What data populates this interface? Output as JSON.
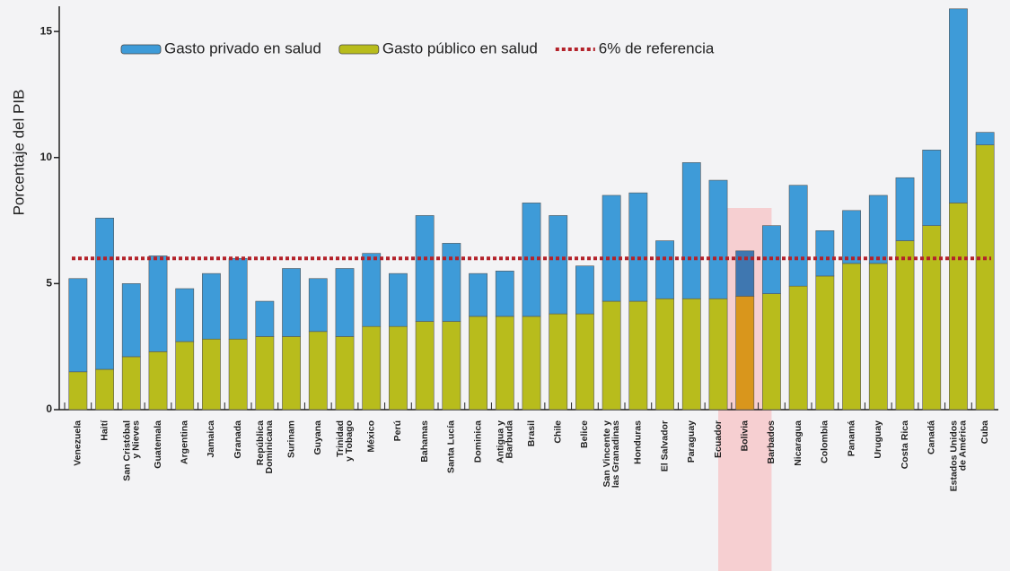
{
  "chart_data": {
    "type": "stacked_bar",
    "y_label": "Porcentaje del PIB",
    "categories": [
      "Venezuela",
      "Haití",
      "San Cristóbal y Nieves",
      "Guatemala",
      "Argentina",
      "Jamaica",
      "Granada",
      "República Dominicana",
      "Surinam",
      "Guyana",
      "Trinidad y Tobago",
      "México",
      "Perú",
      "Bahamas",
      "Santa Lucía",
      "Dominica",
      "Antigua y Barbuda",
      "Brasil",
      "Chile",
      "Belice",
      "San Vincente y las Granadinas",
      "Honduras",
      "El Salvador",
      "Paraguay",
      "Ecuador",
      "Bolivia",
      "Barbados",
      "Nicaragua",
      "Colombia",
      "Panamá",
      "Uruguay",
      "Costa Rica",
      "Canadá",
      "Estados Unidos de América",
      "Cuba"
    ],
    "series": [
      {
        "name": "Gasto privado en salud",
        "color": "#3e9bd8",
        "stack_order": 1,
        "values": [
          3.7,
          6.0,
          2.9,
          3.8,
          2.1,
          2.6,
          3.2,
          1.4,
          2.7,
          2.1,
          2.7,
          2.9,
          2.1,
          4.2,
          3.1,
          1.7,
          1.8,
          4.5,
          3.9,
          1.9,
          4.2,
          4.3,
          2.3,
          5.4,
          4.7,
          1.8,
          2.7,
          4.0,
          1.8,
          2.1,
          2.7,
          2.5,
          3.0,
          7.7,
          0.5
        ]
      },
      {
        "name": "Gasto público en salud",
        "color": "#b8bc1c",
        "stack_order": 0,
        "values": [
          1.5,
          1.6,
          2.1,
          2.3,
          2.7,
          2.8,
          2.8,
          2.9,
          2.9,
          3.1,
          2.9,
          3.3,
          3.3,
          3.5,
          3.5,
          3.7,
          3.7,
          3.7,
          3.8,
          3.8,
          4.3,
          4.3,
          4.4,
          4.4,
          4.4,
          4.5,
          4.6,
          4.9,
          5.3,
          5.8,
          5.8,
          6.7,
          7.3,
          8.2,
          10.5
        ]
      }
    ],
    "reference": {
      "name": "6% de referencia",
      "value": 6,
      "color": "#b3222a"
    },
    "highlight": {
      "index": 25,
      "band_color": "#f6c6c8",
      "bar_colors": [
        "#3f77b0",
        "#d9961c"
      ]
    },
    "ylim": [
      0,
      16
    ],
    "yticks": [
      0,
      5,
      10,
      15
    ],
    "grid": false
  }
}
